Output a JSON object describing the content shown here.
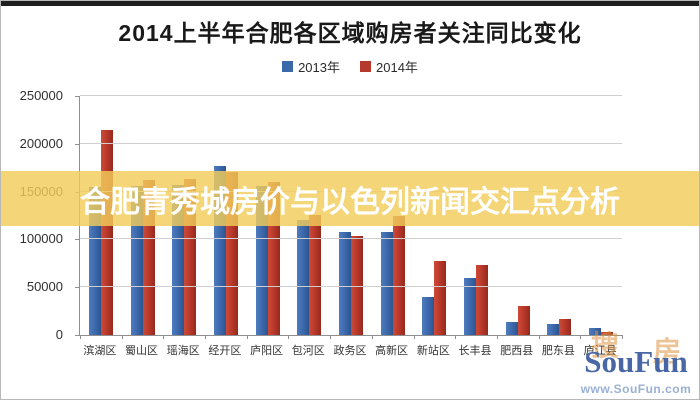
{
  "page": {
    "title": "2014上半年合肥各区域购房者关注同比变化",
    "overlay_text": "合肥青秀城房价与以色列新闻交汇点分析"
  },
  "legend": {
    "items": [
      {
        "label": "2013年",
        "color": "#3a68a8"
      },
      {
        "label": "2014年",
        "color": "#b5392c"
      }
    ]
  },
  "watermark": {
    "cn_char_1": "搜",
    "cn_char_2": "房",
    "latin": "SouFun",
    "url": "www.SouFun.com"
  },
  "chart_data": {
    "type": "bar",
    "title": "2014上半年合肥各区域购房者关注同比变化",
    "categories": [
      "滨湖区",
      "蜀山区",
      "瑶海区",
      "经开区",
      "庐阳区",
      "包河区",
      "政务区",
      "高新区",
      "新站区",
      "长丰县",
      "肥西县",
      "肥东县",
      "庐江县"
    ],
    "series": [
      {
        "name": "2013年",
        "color": "#3a68a8",
        "values": [
          155000,
          156000,
          157000,
          177000,
          156000,
          120000,
          108000,
          108000,
          40000,
          60000,
          14000,
          12000,
          7000
        ]
      },
      {
        "name": "2014年",
        "color": "#b5392c",
        "values": [
          214000,
          162000,
          163000,
          171000,
          160000,
          126000,
          104000,
          125000,
          77000,
          73000,
          30000,
          17000,
          3000
        ]
      }
    ],
    "xlabel": "",
    "ylabel": "",
    "ylim": [
      0,
      250000
    ],
    "ytick_interval": 50000,
    "yticks": [
      "0",
      "50000",
      "100000",
      "150000",
      "200000",
      "250000"
    ],
    "grid": true,
    "legend_position": "top"
  }
}
